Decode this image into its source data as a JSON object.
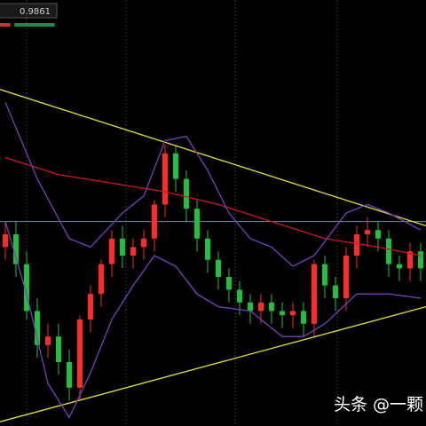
{
  "chart_data": {
    "type": "candlestick",
    "header_value": "0.9861",
    "watermark": "头条 @一颗",
    "xlim": [
      -0.5,
      39.5
    ],
    "ylim": [
      0,
      100
    ],
    "up_color": "#ff2a2a",
    "down_color": "#1fbf3f",
    "open": [
      42,
      45,
      38,
      27,
      19,
      21,
      15,
      9,
      25,
      31,
      38,
      44,
      40,
      42,
      44,
      52,
      64,
      58,
      51,
      44,
      39,
      35,
      32,
      29,
      27,
      29,
      27,
      26,
      27,
      24,
      38,
      33,
      30,
      40,
      45,
      46,
      44,
      38,
      37,
      41
    ],
    "high": [
      48,
      48,
      41,
      30,
      24,
      24,
      18,
      26,
      33,
      39,
      46,
      47,
      44,
      46,
      53,
      66,
      66,
      60,
      53,
      46,
      41,
      37,
      34,
      31,
      31,
      31,
      29,
      29,
      29,
      39,
      40,
      35,
      42,
      47,
      49,
      48,
      46,
      40,
      43,
      43
    ],
    "low": [
      39,
      35,
      25,
      16,
      16,
      12,
      6,
      6,
      22,
      28,
      35,
      37,
      37,
      39,
      41,
      49,
      55,
      48,
      41,
      36,
      32,
      29,
      26,
      24,
      24,
      24,
      23,
      23,
      21,
      21,
      30,
      27,
      27,
      37,
      42,
      41,
      35,
      34,
      34,
      34
    ],
    "close": [
      45,
      38,
      27,
      19,
      21,
      15,
      9,
      25,
      31,
      38,
      44,
      40,
      42,
      44,
      52,
      64,
      58,
      51,
      44,
      39,
      35,
      32,
      29,
      27,
      29,
      27,
      26,
      27,
      24,
      38,
      33,
      30,
      40,
      45,
      46,
      44,
      38,
      37,
      41,
      37
    ],
    "hline": {
      "value": 48,
      "color": "#6a8fb0"
    },
    "lines": [
      {
        "color": "#e8e030",
        "x": [
          -0.5,
          39.5
        ],
        "values": [
          79,
          47
        ]
      },
      {
        "color": "#e8e030",
        "x": [
          -0.5,
          39.5
        ],
        "values": [
          1,
          28
        ]
      },
      {
        "color": "#d01818",
        "x": [
          0,
          5,
          10,
          15,
          20,
          25,
          30,
          35,
          39
        ],
        "values": [
          63,
          59,
          57,
          55,
          52,
          48,
          44,
          42,
          40
        ]
      },
      {
        "color": "#7a3fc0",
        "x": [
          0,
          3,
          6,
          8,
          11,
          13,
          15,
          17,
          19,
          21,
          23,
          25,
          27,
          29,
          32,
          34,
          36,
          39
        ],
        "values": [
          76,
          58,
          44,
          42,
          50,
          54,
          67,
          68,
          60,
          50,
          44,
          42,
          37.5,
          40,
          50,
          52,
          50,
          46
        ]
      },
      {
        "color": "#7a3fc0",
        "x": [
          0,
          2,
          4,
          6,
          8,
          10,
          12,
          14,
          16,
          18,
          20,
          23,
          26,
          28,
          30,
          33,
          36,
          39
        ],
        "values": [
          48,
          31,
          10,
          2,
          12.5,
          25,
          33,
          40,
          37.5,
          31,
          28,
          27,
          21,
          21,
          24,
          31,
          31,
          30
        ]
      }
    ]
  }
}
